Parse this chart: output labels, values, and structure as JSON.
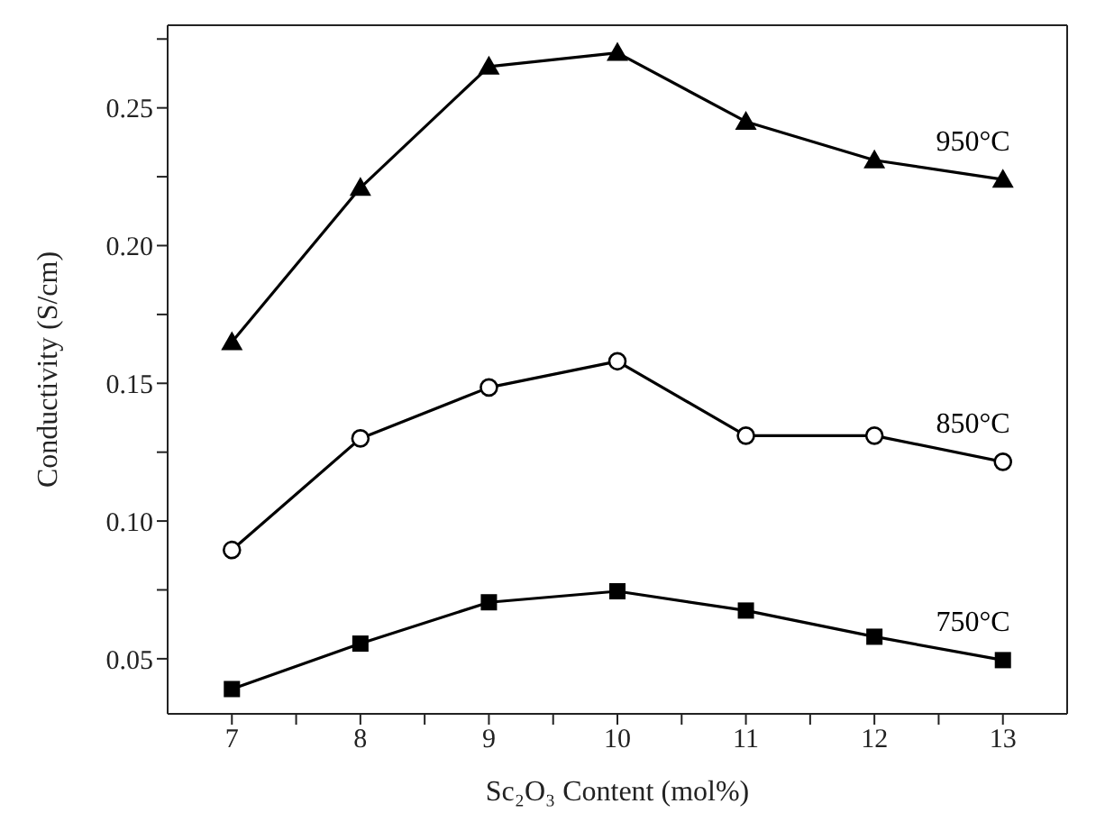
{
  "chart_data": {
    "type": "line",
    "xlabel": "Sc₂O₃ Content (mol%)",
    "ylabel": "Conductivity (S/cm)",
    "x": [
      7,
      8,
      9,
      10,
      11,
      12,
      13
    ],
    "series": [
      {
        "name": "950°C",
        "color": "#000000",
        "marker": "triangle",
        "values": [
          0.165,
          0.221,
          0.265,
          0.27,
          0.245,
          0.231,
          0.224
        ]
      },
      {
        "name": "850°C",
        "color": "#000000",
        "marker": "circle",
        "values": [
          0.0895,
          0.13,
          0.1485,
          0.158,
          0.131,
          0.131,
          0.1215
        ]
      },
      {
        "name": "750°C",
        "color": "#000000",
        "marker": "square",
        "values": [
          0.039,
          0.0555,
          0.0705,
          0.0745,
          0.0675,
          0.058,
          0.0495
        ]
      }
    ],
    "xlim": [
      6.5,
      13.5
    ],
    "xticks": [
      7,
      {
        "value": 7.5,
        "label": null
      },
      8,
      {
        "value": 8.5,
        "label": null
      },
      9,
      {
        "value": 9.5,
        "label": null
      },
      10,
      {
        "value": 10.5,
        "label": null
      },
      11,
      {
        "value": 11.5,
        "label": null
      },
      12,
      {
        "value": 12.5,
        "label": null
      },
      13
    ],
    "ylim": [
      0.03,
      0.28
    ],
    "yticks": [
      {
        "value": 0.05,
        "label": "0.05"
      },
      {
        "value": 0.075,
        "label": null
      },
      {
        "value": 0.1,
        "label": "0.10"
      },
      {
        "value": 0.125,
        "label": null
      },
      {
        "value": 0.15,
        "label": "0.15"
      },
      {
        "value": 0.175,
        "label": null
      },
      {
        "value": 0.2,
        "label": "0.20"
      },
      {
        "value": 0.225,
        "label": null
      },
      {
        "value": 0.25,
        "label": "0.25"
      },
      {
        "value": 0.275,
        "label": null
      }
    ],
    "grid": false,
    "legend": false,
    "line_style": "solid"
  }
}
